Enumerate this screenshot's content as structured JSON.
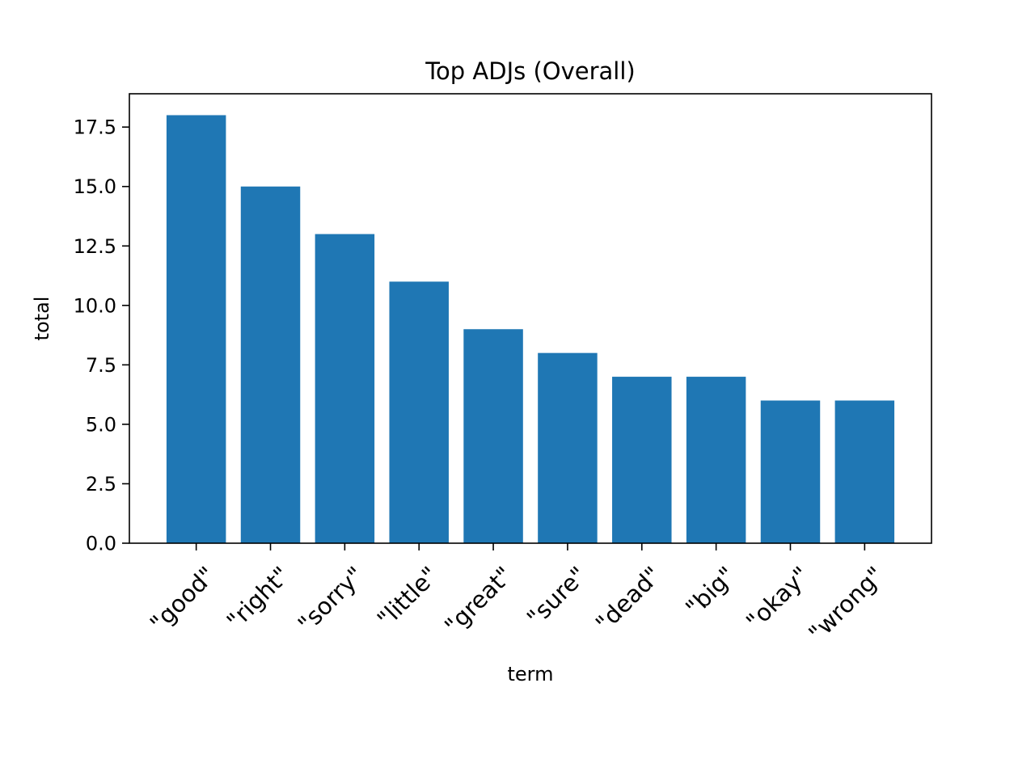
{
  "chart_data": {
    "type": "bar",
    "title": "Top ADJs (Overall)",
    "xlabel": "term",
    "ylabel": "total",
    "categories": [
      "\"good\"",
      "\"right\"",
      "\"sorry\"",
      "\"little\"",
      "\"great\"",
      "\"sure\"",
      "\"dead\"",
      "\"big\"",
      "\"okay\"",
      "\"wrong\""
    ],
    "values": [
      18,
      15,
      13,
      11,
      9,
      8,
      7,
      7,
      6,
      6
    ],
    "ylim": [
      0,
      18.9
    ],
    "yticks": [
      0.0,
      2.5,
      5.0,
      7.5,
      10.0,
      12.5,
      15.0,
      17.5
    ],
    "ytick_labels": [
      "0.0",
      "2.5",
      "5.0",
      "7.5",
      "10.0",
      "12.5",
      "15.0",
      "17.5"
    ],
    "grid": false,
    "bar_color": "#1f77b4"
  }
}
